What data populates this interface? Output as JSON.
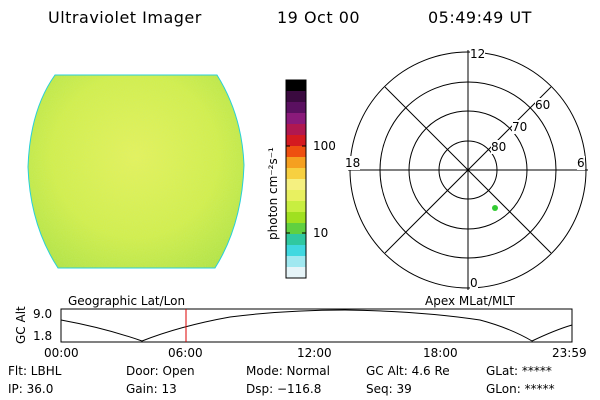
{
  "header": {
    "title": "Ultraviolet Imager",
    "date": "19 Oct 00",
    "time": "05:49:49 UT"
  },
  "colorbar": {
    "unit": "photon cm⁻²s⁻¹",
    "ticks": [
      "100",
      "10"
    ],
    "colors": [
      "#000000",
      "#3a0a3f",
      "#5a1060",
      "#8a1a7a",
      "#b01850",
      "#d41a20",
      "#ee5010",
      "#f5a020",
      "#f7d040",
      "#f5f080",
      "#e8f060",
      "#c8ee40",
      "#a0e020",
      "#60d040",
      "#30c8a0",
      "#40d8e0",
      "#a0e8f0",
      "#e6f4f8"
    ]
  },
  "polar_plot": {
    "labels": {
      "top": "12",
      "left": "18",
      "right": "6",
      "bottom": "0"
    },
    "rings": [
      "60",
      "70",
      "80"
    ],
    "point_color": "#33cc33"
  },
  "timeline": {
    "left_caption": "Geographic Lat/Lon",
    "right_caption": "Apex MLat/MLT",
    "axis_label": "GC Alt",
    "y_ticks": [
      "9.0",
      "1.8"
    ],
    "x_ticks": [
      "00:00",
      "06:00",
      "12:00",
      "18:00",
      "23:59"
    ],
    "marker_color": "#dd0000"
  },
  "status": {
    "flt": "Flt: LBHL",
    "ip": "IP: 36.0",
    "door": "Door: Open",
    "gain": "Gain: 13",
    "mode": "Mode: Normal",
    "dsp": "Dsp: −116.8",
    "gcalt": "GC Alt: 4.6 Re",
    "seq": "Seq: 39",
    "glat": "GLat: *****",
    "glon": "GLon: *****"
  }
}
